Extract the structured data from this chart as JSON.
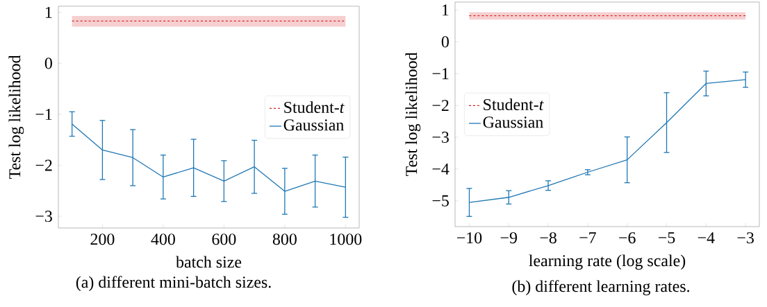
{
  "chart_data": [
    {
      "type": "line",
      "xlabel": "batch size",
      "ylabel": "Test log likelihood",
      "annotations": [
        "(a) different mini-batch sizes."
      ],
      "x": [
        100,
        200,
        300,
        400,
        500,
        600,
        700,
        800,
        900,
        1000
      ],
      "series": [
        {
          "name": "Student-*t*",
          "color": "#d62728",
          "line_style": "dashed",
          "x": [
            100,
            1000
          ],
          "values": [
            0.83,
            0.83
          ],
          "lower": [
            0.72,
            0.72
          ],
          "upper": [
            0.93,
            0.93
          ]
        },
        {
          "name": "Gaussian",
          "color": "#1f77b4",
          "line_style": "solid",
          "values": [
            -1.19,
            -1.7,
            -1.85,
            -2.23,
            -2.05,
            -2.31,
            -2.03,
            -2.51,
            -2.31,
            -2.43
          ],
          "errors": [
            0.24,
            0.58,
            0.55,
            0.43,
            0.56,
            0.4,
            0.52,
            0.45,
            0.51,
            0.59
          ]
        }
      ],
      "xlim": [
        55,
        1045
      ],
      "ylim": [
        -3.23,
        1.12
      ],
      "xticks": [
        200,
        400,
        600,
        800,
        1000
      ],
      "yticks": [
        {
          "value": -3,
          "label": "−3"
        },
        {
          "value": -2,
          "label": "−2"
        },
        {
          "value": -1,
          "label": "−1"
        },
        0,
        1
      ],
      "legend": "right"
    },
    {
      "type": "line",
      "xlabel": "learning rate (log scale)",
      "ylabel": "Test log likelihood",
      "annotations": [
        "(b) different learning rates."
      ],
      "x": [
        -10,
        -9,
        -8,
        -7,
        -6,
        -5,
        -4,
        -3
      ],
      "series": [
        {
          "name": "Student-*t*",
          "color": "#d62728",
          "line_style": "dashed",
          "x": [
            -10,
            -3
          ],
          "values": [
            0.82,
            0.82
          ],
          "lower": [
            0.7,
            0.7
          ],
          "upper": [
            0.93,
            0.93
          ]
        },
        {
          "name": "Gaussian",
          "color": "#1f77b4",
          "line_style": "solid",
          "values": [
            -5.05,
            -4.89,
            -4.52,
            -4.1,
            -3.71,
            -2.54,
            -1.31,
            -1.19
          ],
          "errors": [
            0.44,
            0.21,
            0.15,
            0.08,
            0.72,
            0.94,
            0.39,
            0.24
          ]
        }
      ],
      "xlim": [
        -10.36,
        -2.65
      ],
      "ylim": [
        -5.81,
        1.25
      ],
      "xticks": [
        {
          "value": -10,
          "label": "−10"
        },
        {
          "value": -9,
          "label": "−9"
        },
        {
          "value": -8,
          "label": "−8"
        },
        {
          "value": -7,
          "label": "−7"
        },
        {
          "value": -6,
          "label": "−6"
        },
        {
          "value": -5,
          "label": "−5"
        },
        {
          "value": -4,
          "label": "−4"
        },
        {
          "value": -3,
          "label": "−3"
        }
      ],
      "yticks": [
        {
          "value": -5,
          "label": "−5"
        },
        {
          "value": -4,
          "label": "−4"
        },
        {
          "value": -3,
          "label": "−3"
        },
        {
          "value": -2,
          "label": "−2"
        },
        {
          "value": -1,
          "label": "−1"
        },
        0,
        1
      ],
      "legend": "left"
    }
  ]
}
